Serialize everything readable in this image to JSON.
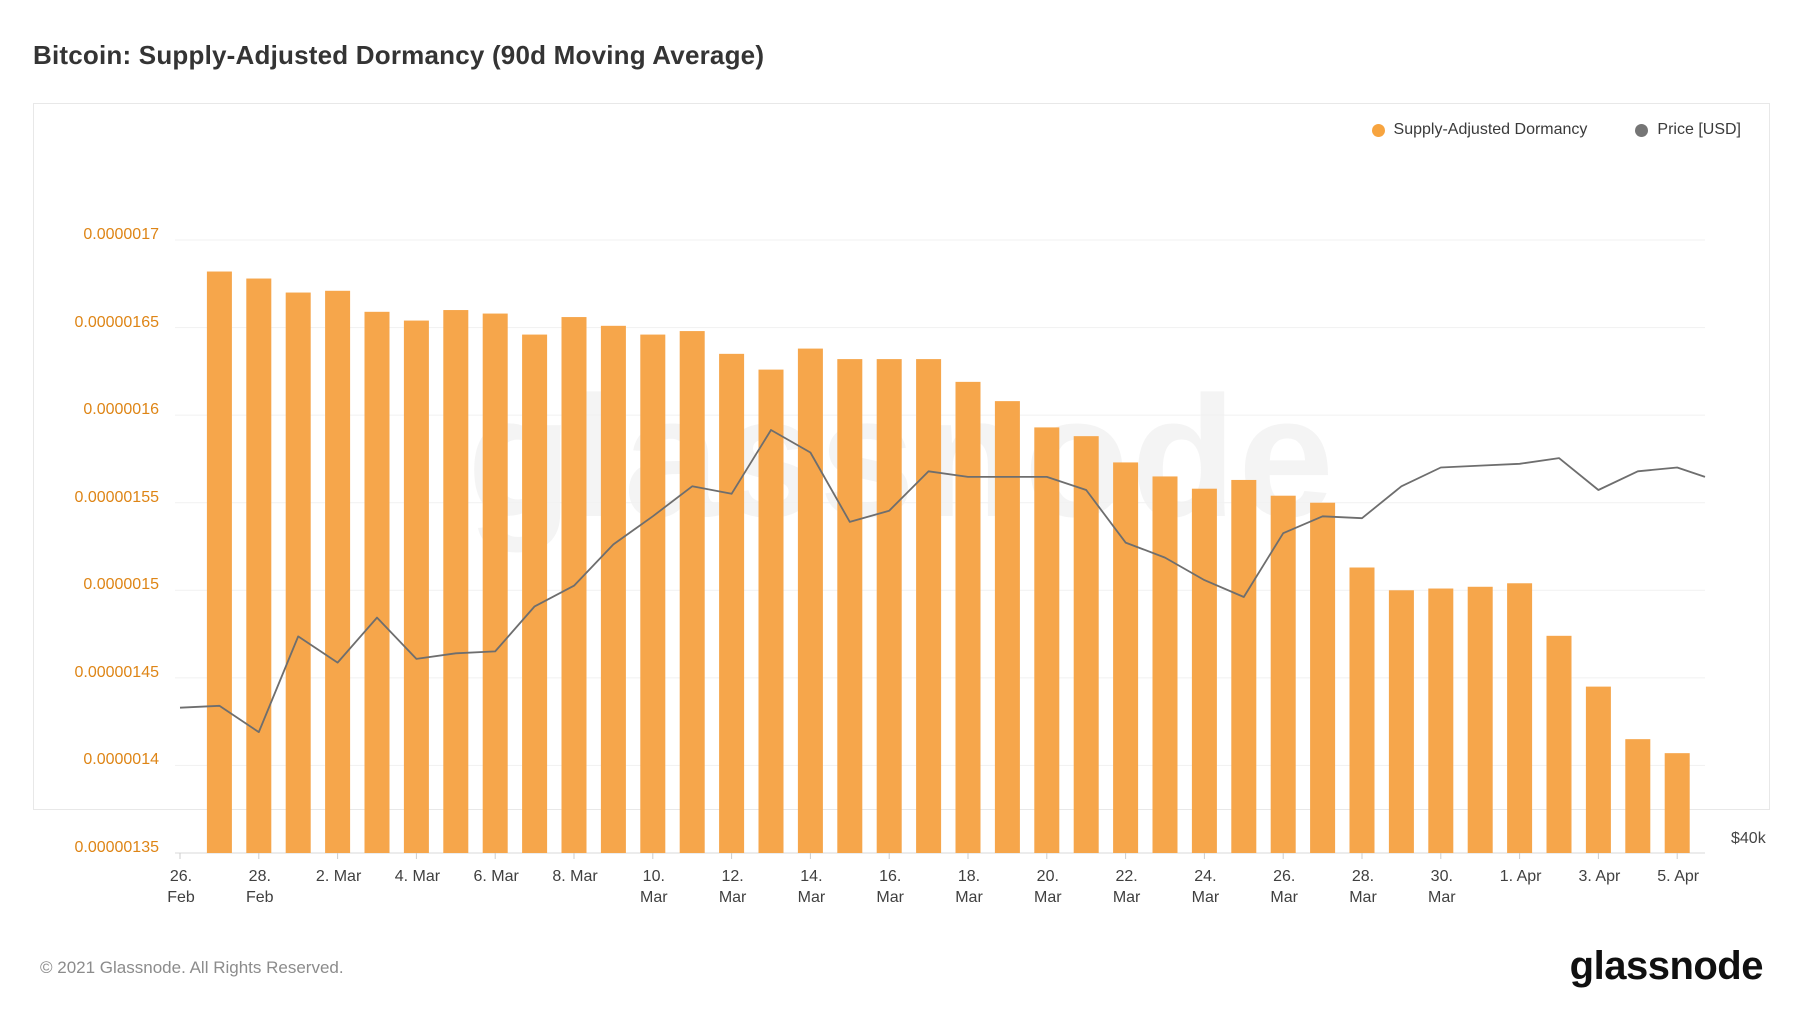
{
  "title": "Bitcoin: Supply-Adjusted Dormancy (90d Moving Average)",
  "watermark": "glassnode",
  "legend": [
    {
      "label": "Supply-Adjusted Dormancy",
      "color": "#f7a43f"
    },
    {
      "label": "Price [USD]",
      "color": "#757575"
    }
  ],
  "y_axis_left": {
    "labels": [
      "0.0000017",
      "0.00000165",
      "0.0000016",
      "0.00000155",
      "0.0000015",
      "0.00000145",
      "0.0000014",
      "0.00000135"
    ]
  },
  "y_axis_right": {
    "label": "$40k"
  },
  "x_axis": {
    "ticks": [
      {
        "line1": "26.",
        "line2": "Feb"
      },
      {
        "line1": "28.",
        "line2": "Feb"
      },
      {
        "line1": "2. Mar"
      },
      {
        "line1": "4. Mar"
      },
      {
        "line1": "6. Mar"
      },
      {
        "line1": "8. Mar"
      },
      {
        "line1": "10.",
        "line2": "Mar"
      },
      {
        "line1": "12.",
        "line2": "Mar"
      },
      {
        "line1": "14.",
        "line2": "Mar"
      },
      {
        "line1": "16.",
        "line2": "Mar"
      },
      {
        "line1": "18.",
        "line2": "Mar"
      },
      {
        "line1": "20.",
        "line2": "Mar"
      },
      {
        "line1": "22.",
        "line2": "Mar"
      },
      {
        "line1": "24.",
        "line2": "Mar"
      },
      {
        "line1": "26.",
        "line2": "Mar"
      },
      {
        "line1": "28.",
        "line2": "Mar"
      },
      {
        "line1": "30.",
        "line2": "Mar"
      },
      {
        "line1": "1. Apr"
      },
      {
        "line1": "3. Apr"
      },
      {
        "line1": "5. Apr"
      }
    ]
  },
  "chart_data": {
    "type": "bar+line",
    "title": "Bitcoin: Supply-Adjusted Dormancy (90d Moving Average)",
    "grid": "horizontal-only",
    "legend_position": "top-right",
    "ylim_left": [
      1.35e-06,
      1.7e-06
    ],
    "ylim_right_usd": [
      38650,
      71300
    ],
    "series": [
      {
        "name": "Supply-Adjusted Dormancy",
        "type": "bar",
        "color": "#f6a64b",
        "dates": [
          "2021-02-27",
          "2021-02-28",
          "2021-03-01",
          "2021-03-02",
          "2021-03-03",
          "2021-03-04",
          "2021-03-05",
          "2021-03-06",
          "2021-03-07",
          "2021-03-08",
          "2021-03-09",
          "2021-03-10",
          "2021-03-11",
          "2021-03-12",
          "2021-03-13",
          "2021-03-14",
          "2021-03-15",
          "2021-03-16",
          "2021-03-17",
          "2021-03-18",
          "2021-03-19",
          "2021-03-20",
          "2021-03-21",
          "2021-03-22",
          "2021-03-23",
          "2021-03-24",
          "2021-03-25",
          "2021-03-26",
          "2021-03-27",
          "2021-03-28",
          "2021-03-29",
          "2021-03-30",
          "2021-03-31",
          "2021-04-01",
          "2021-04-02",
          "2021-04-03",
          "2021-04-04",
          "2021-04-05"
        ],
        "values": [
          1.682e-06,
          1.678e-06,
          1.67e-06,
          1.671e-06,
          1.659e-06,
          1.654e-06,
          1.66e-06,
          1.658e-06,
          1.646e-06,
          1.656e-06,
          1.651e-06,
          1.646e-06,
          1.648e-06,
          1.635e-06,
          1.626e-06,
          1.638e-06,
          1.632e-06,
          1.632e-06,
          1.632e-06,
          1.619e-06,
          1.608e-06,
          1.593e-06,
          1.588e-06,
          1.573e-06,
          1.565e-06,
          1.558e-06,
          1.563e-06,
          1.554e-06,
          1.55e-06,
          1.513e-06,
          1.5e-06,
          1.501e-06,
          1.502e-06,
          1.504e-06,
          1.474e-06,
          1.445e-06,
          1.415e-06,
          1.407e-06
        ]
      },
      {
        "name": "Price [USD]",
        "type": "line",
        "color": "#6e6e6e",
        "dates": [
          "2021-02-26",
          "2021-02-27",
          "2021-02-28",
          "2021-03-01",
          "2021-03-02",
          "2021-03-03",
          "2021-03-04",
          "2021-03-05",
          "2021-03-06",
          "2021-03-07",
          "2021-03-08",
          "2021-03-09",
          "2021-03-10",
          "2021-03-11",
          "2021-03-12",
          "2021-03-13",
          "2021-03-14",
          "2021-03-15",
          "2021-03-16",
          "2021-03-17",
          "2021-03-18",
          "2021-03-19",
          "2021-03-20",
          "2021-03-21",
          "2021-03-22",
          "2021-03-23",
          "2021-03-24",
          "2021-03-25",
          "2021-03-26",
          "2021-03-27",
          "2021-03-28",
          "2021-03-29",
          "2021-03-30",
          "2021-03-31",
          "2021-04-01",
          "2021-04-02",
          "2021-04-03",
          "2021-04-04",
          "2021-04-05"
        ],
        "values_usd": [
          46400,
          46500,
          45100,
          50200,
          48800,
          51200,
          49000,
          49300,
          49400,
          51800,
          52900,
          55100,
          56600,
          58200,
          57800,
          61200,
          60000,
          56300,
          56900,
          59000,
          58700,
          58700,
          58700,
          58000,
          55200,
          54400,
          53200,
          52300,
          55700,
          56600,
          56500,
          58200,
          59200,
          59300,
          59400,
          59700,
          58000,
          59000,
          59200
        ],
        "edge_point_usd": 58700
      }
    ]
  },
  "footer": {
    "copyright": "© 2021 Glassnode. All Rights Reserved.",
    "logo": "glassnode"
  }
}
